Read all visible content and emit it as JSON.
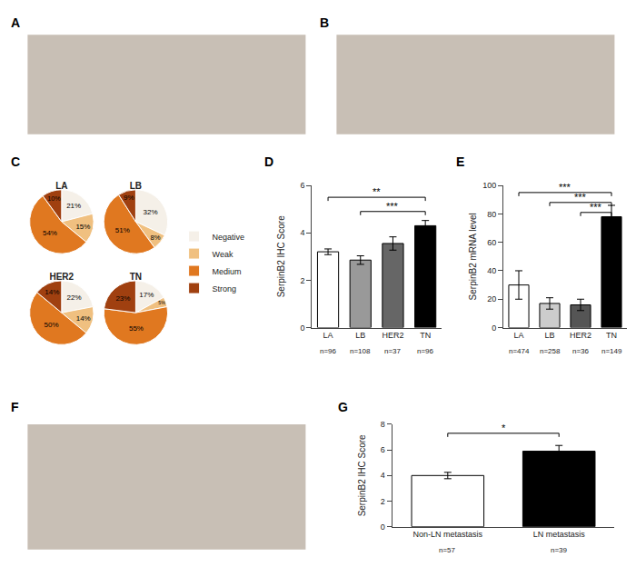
{
  "chart_data": [
    {
      "type": "image",
      "annotations": [
        "A"
      ]
    },
    {
      "type": "image",
      "annotations": [
        "B"
      ]
    },
    {
      "type": "pie",
      "title": "LA",
      "categories": [
        "Negative",
        "Weak",
        "Medium",
        "Strong"
      ],
      "values": [
        21,
        15,
        54,
        10
      ],
      "value_labels": [
        "21%",
        "15%",
        "54%",
        "10%"
      ],
      "colors": [
        "#f5f0e8",
        "#f0c080",
        "#e07820",
        "#a04010"
      ],
      "data_labels": true,
      "legend": "right",
      "annotations": [
        "C"
      ]
    },
    {
      "type": "pie",
      "title": "LB",
      "categories": [
        "Negative",
        "Weak",
        "Medium",
        "Strong"
      ],
      "values": [
        32,
        8,
        51,
        9
      ],
      "value_labels": [
        "32%",
        "8%",
        "51%",
        "9%"
      ],
      "colors": [
        "#f5f0e8",
        "#f0c080",
        "#e07820",
        "#a04010"
      ],
      "data_labels": true
    },
    {
      "type": "pie",
      "title": "HER2",
      "categories": [
        "Negative",
        "Weak",
        "Medium",
        "Strong"
      ],
      "values": [
        22,
        14,
        50,
        14
      ],
      "value_labels": [
        "22%",
        "14%",
        "50%",
        "14%"
      ],
      "colors": [
        "#f5f0e8",
        "#f0c080",
        "#e07820",
        "#a04010"
      ],
      "data_labels": true
    },
    {
      "type": "pie",
      "title": "TN",
      "categories": [
        "Negative",
        "Weak",
        "Medium",
        "Strong"
      ],
      "values": [
        17,
        5,
        55,
        23
      ],
      "value_labels": [
        "17%",
        "5%",
        "55%",
        "23%"
      ],
      "colors": [
        "#f5f0e8",
        "#f0c080",
        "#e07820",
        "#a04010"
      ],
      "data_labels": true
    },
    {
      "type": "bar",
      "categories": [
        "LA",
        "LB",
        "HER2",
        "TN"
      ],
      "values": [
        3.2,
        2.85,
        3.55,
        4.3
      ],
      "errors": [
        0.12,
        0.18,
        0.28,
        0.22
      ],
      "colors": [
        "#ffffff",
        "#999999",
        "#666666",
        "#000000"
      ],
      "n_labels": [
        "n=96",
        "n=108",
        "n=37",
        "n=96"
      ],
      "ylabel": "SerpinB2 IHC Score",
      "ylim": [
        0,
        6
      ],
      "yticks": [
        0,
        2,
        4,
        6
      ],
      "grid": false,
      "significance": [
        {
          "from": "LA",
          "to": "TN",
          "y": 5.5,
          "label": "**"
        },
        {
          "from": "LB",
          "to": "TN",
          "y": 4.9,
          "label": "***"
        }
      ],
      "annotations": [
        "D"
      ]
    },
    {
      "type": "bar",
      "categories": [
        "LA",
        "LB",
        "HER2",
        "TN"
      ],
      "values": [
        30,
        17,
        16,
        78
      ],
      "errors": [
        10,
        4,
        4,
        8
      ],
      "colors": [
        "#ffffff",
        "#cccccc",
        "#555555",
        "#000000"
      ],
      "n_labels": [
        "n=474",
        "n=258",
        "n=36",
        "n=149"
      ],
      "ylabel": "SerpinB2 mRNA level",
      "ylim": [
        0,
        100
      ],
      "yticks": [
        0,
        20,
        40,
        60,
        80,
        100
      ],
      "grid": false,
      "significance": [
        {
          "from": "LA",
          "to": "TN",
          "y": 95,
          "label": "***"
        },
        {
          "from": "LB",
          "to": "TN",
          "y": 88,
          "label": "***"
        },
        {
          "from": "HER2",
          "to": "TN",
          "y": 81,
          "label": "***"
        }
      ],
      "annotations": [
        "E"
      ]
    },
    {
      "type": "image",
      "annotations": [
        "F"
      ]
    },
    {
      "type": "bar",
      "categories": [
        "Non-LN metastasis",
        "LN metastasis"
      ],
      "values": [
        4.0,
        5.9
      ],
      "errors": [
        0.25,
        0.45
      ],
      "colors": [
        "#ffffff",
        "#000000"
      ],
      "n_labels": [
        "n=57",
        "n=39"
      ],
      "ylabel": "SerpinB2 IHC Score",
      "ylim": [
        0,
        8
      ],
      "yticks": [
        0,
        2,
        4,
        6,
        8
      ],
      "grid": false,
      "significance": [
        {
          "from": "Non-LN metastasis",
          "to": "LN metastasis",
          "y": 7.3,
          "label": "*"
        }
      ],
      "annotations": [
        "G"
      ]
    }
  ]
}
